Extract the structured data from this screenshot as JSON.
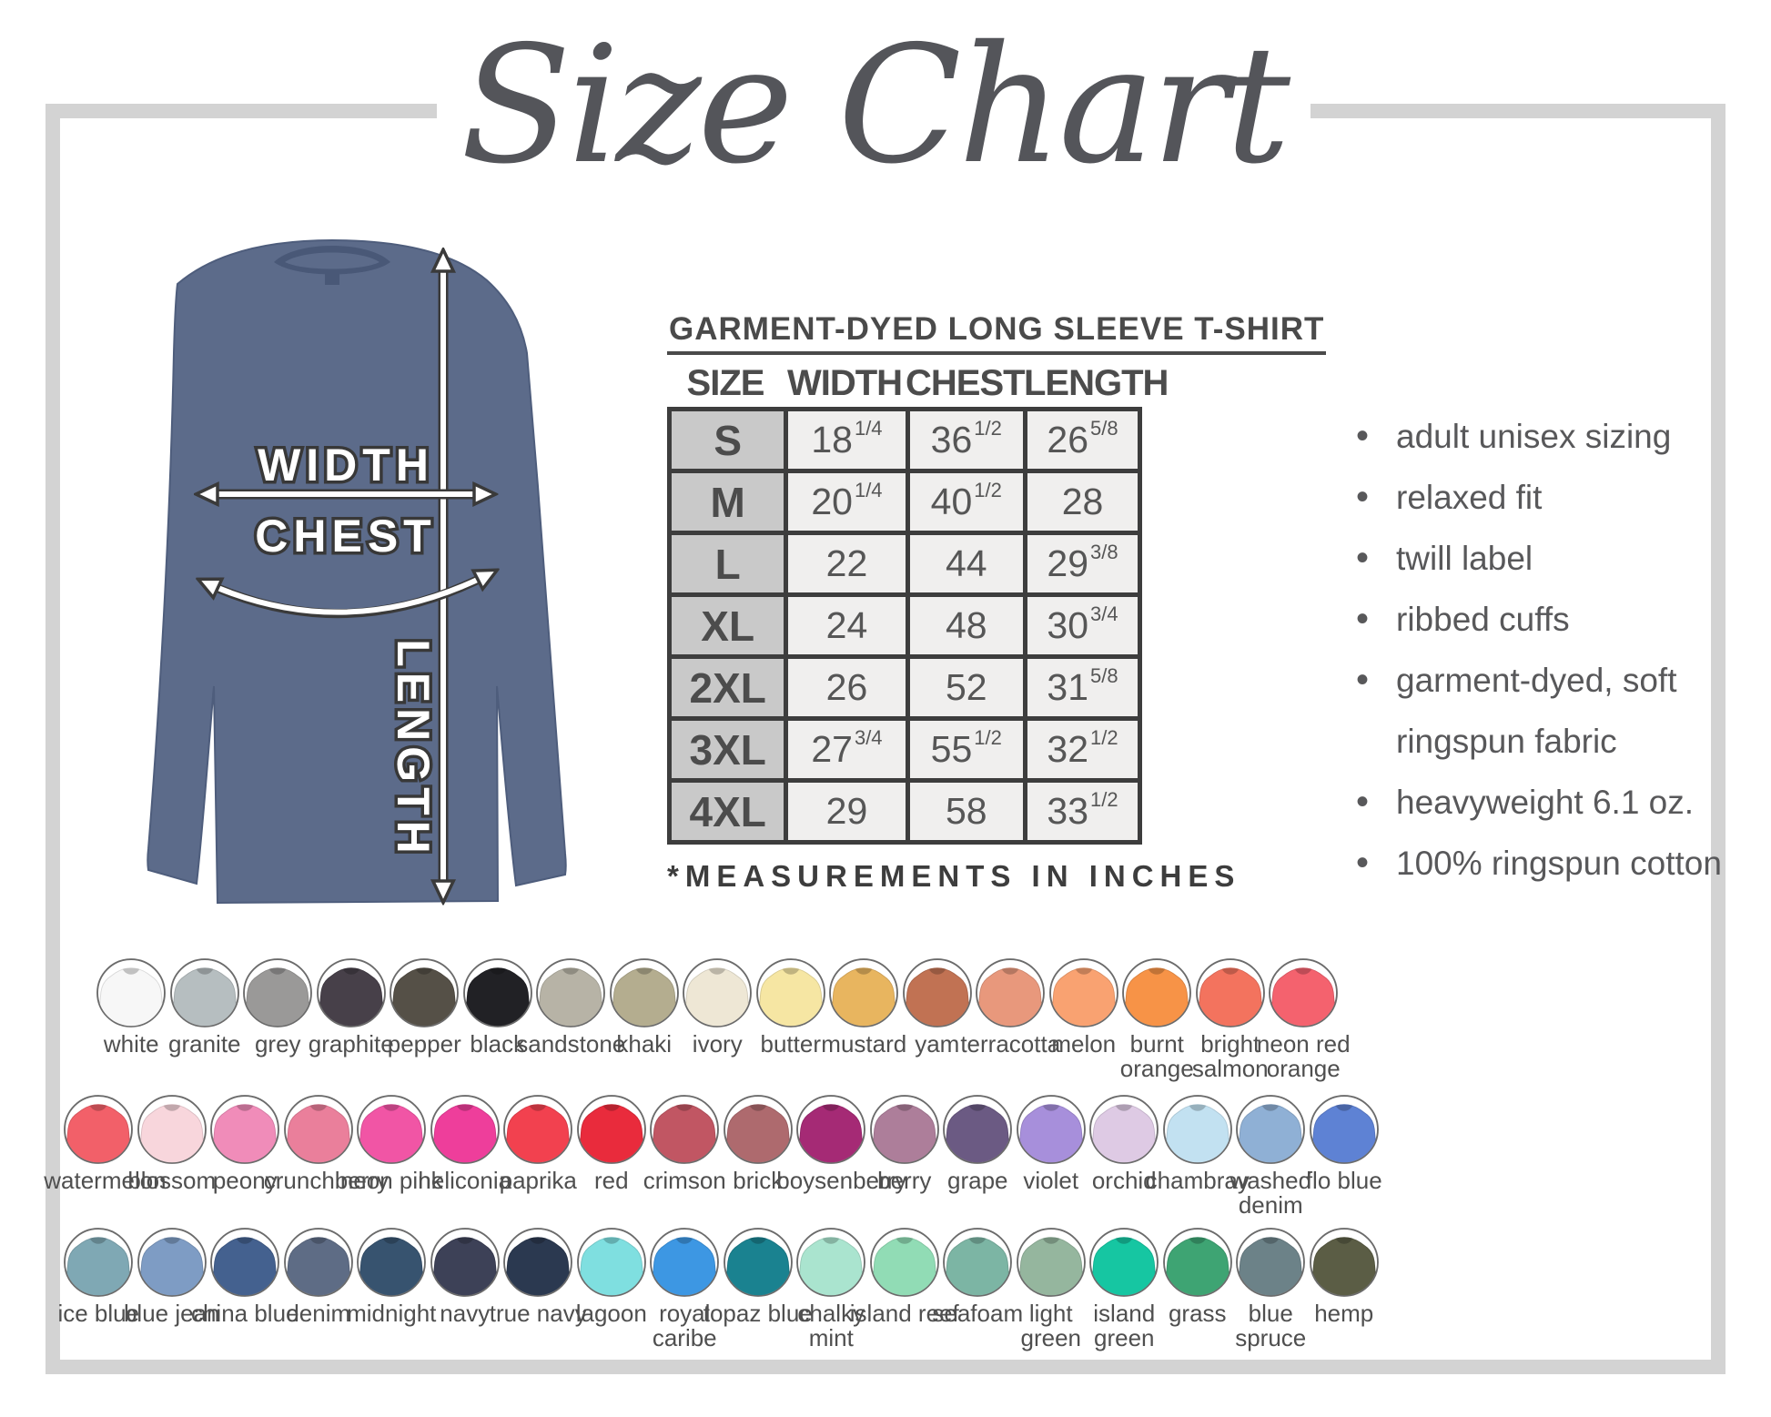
{
  "title": "Size Chart",
  "diagram": {
    "width_label": "WIDTH",
    "chest_label": "CHEST",
    "length_label": "LENGTH",
    "shirt_color": "#5c6b8a"
  },
  "product": {
    "table_title": "GARMENT-DYED LONG SLEEVE T-SHIRT",
    "columns": [
      "SIZE",
      "WIDTH",
      "CHEST",
      "LENGTH"
    ],
    "rows": [
      {
        "size": "S",
        "width": {
          "v": "18",
          "f": "1/4"
        },
        "chest": {
          "v": "36",
          "f": "1/2"
        },
        "length": {
          "v": "26",
          "f": "5/8"
        }
      },
      {
        "size": "M",
        "width": {
          "v": "20",
          "f": "1/4"
        },
        "chest": {
          "v": "40",
          "f": "1/2"
        },
        "length": {
          "v": "28",
          "f": ""
        }
      },
      {
        "size": "L",
        "width": {
          "v": "22",
          "f": ""
        },
        "chest": {
          "v": "44",
          "f": ""
        },
        "length": {
          "v": "29",
          "f": "3/8"
        }
      },
      {
        "size": "XL",
        "width": {
          "v": "24",
          "f": ""
        },
        "chest": {
          "v": "48",
          "f": ""
        },
        "length": {
          "v": "30",
          "f": "3/4"
        }
      },
      {
        "size": "2XL",
        "width": {
          "v": "26",
          "f": ""
        },
        "chest": {
          "v": "52",
          "f": ""
        },
        "length": {
          "v": "31",
          "f": "5/8"
        }
      },
      {
        "size": "3XL",
        "width": {
          "v": "27",
          "f": "3/4"
        },
        "chest": {
          "v": "55",
          "f": "1/2"
        },
        "length": {
          "v": "32",
          "f": "1/2"
        }
      },
      {
        "size": "4XL",
        "width": {
          "v": "29",
          "f": ""
        },
        "chest": {
          "v": "58",
          "f": ""
        },
        "length": {
          "v": "33",
          "f": "1/2"
        }
      }
    ],
    "footnote": "*MEASUREMENTS IN INCHES"
  },
  "features": [
    "adult unisex sizing",
    "relaxed fit",
    "twill label",
    "ribbed cuffs",
    "garment-dyed, soft\nringspun fabric",
    "heavyweight 6.1 oz.",
    "100% ringspun cotton"
  ],
  "swatch_rows": [
    [
      {
        "name": "white",
        "color": "#f7f7f7"
      },
      {
        "name": "granite",
        "color": "#b6bec0"
      },
      {
        "name": "grey",
        "color": "#9a9998"
      },
      {
        "name": "graphite",
        "color": "#474049"
      },
      {
        "name": "pepper",
        "color": "#555047"
      },
      {
        "name": "black",
        "color": "#212125"
      },
      {
        "name": "sandstone",
        "color": "#b7b3a6"
      },
      {
        "name": "khaki",
        "color": "#b4ad8f"
      },
      {
        "name": "ivory",
        "color": "#eee7d5"
      },
      {
        "name": "butter",
        "color": "#f6e6a3"
      },
      {
        "name": "mustard",
        "color": "#e8b55f"
      },
      {
        "name": "yam",
        "color": "#c17253"
      },
      {
        "name": "terracotta",
        "color": "#e8987c"
      },
      {
        "name": "melon",
        "color": "#f9a271"
      },
      {
        "name": "burnt orange",
        "color": "#f79347"
      },
      {
        "name": "bright salmon",
        "color": "#f3735e"
      },
      {
        "name": "neon red orange",
        "color": "#f4626e"
      }
    ],
    [
      {
        "name": "watermelon",
        "color": "#f26069"
      },
      {
        "name": "blossom",
        "color": "#f8d6dc"
      },
      {
        "name": "peony",
        "color": "#f08cb9"
      },
      {
        "name": "crunchberry",
        "color": "#ea7f9b"
      },
      {
        "name": "neon pink",
        "color": "#f155a5"
      },
      {
        "name": "heliconia",
        "color": "#ee3e9b"
      },
      {
        "name": "paprika",
        "color": "#f2414f"
      },
      {
        "name": "red",
        "color": "#e92b3c"
      },
      {
        "name": "crimson",
        "color": "#c15663"
      },
      {
        "name": "brick",
        "color": "#ae6a6e"
      },
      {
        "name": "boysenberry",
        "color": "#a52a75"
      },
      {
        "name": "berry",
        "color": "#ad7e9a"
      },
      {
        "name": "grape",
        "color": "#6b5a83"
      },
      {
        "name": "violet",
        "color": "#a78fdb"
      },
      {
        "name": "orchid",
        "color": "#decae4"
      },
      {
        "name": "chambray",
        "color": "#c2e1f1"
      },
      {
        "name": "washed denim",
        "color": "#8fb0d5"
      },
      {
        "name": "flo blue",
        "color": "#5e82d4"
      }
    ],
    [
      {
        "name": "ice blue",
        "color": "#7fa8b4"
      },
      {
        "name": "blue jean",
        "color": "#7e9cc4"
      },
      {
        "name": "china blue",
        "color": "#44618f"
      },
      {
        "name": "denim",
        "color": "#5e6c85"
      },
      {
        "name": "midnight",
        "color": "#37536f"
      },
      {
        "name": "navy",
        "color": "#3d4157"
      },
      {
        "name": "true navy",
        "color": "#2b3950"
      },
      {
        "name": "lagoon",
        "color": "#7fdfe0"
      },
      {
        "name": "royal caribe",
        "color": "#3d97e3"
      },
      {
        "name": "topaz blue",
        "color": "#1a8290"
      },
      {
        "name": "chalky mint",
        "color": "#aae4cf"
      },
      {
        "name": "island reef",
        "color": "#91dcb5"
      },
      {
        "name": "seafoam",
        "color": "#7cb5a4"
      },
      {
        "name": "light green",
        "color": "#95b69e"
      },
      {
        "name": "island green",
        "color": "#16c6a2"
      },
      {
        "name": "grass",
        "color": "#3ea473"
      },
      {
        "name": "blue spruce",
        "color": "#6c8288"
      },
      {
        "name": "hemp",
        "color": "#5b5d45"
      }
    ]
  ]
}
